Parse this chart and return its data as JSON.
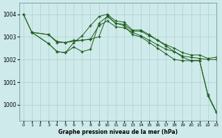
{
  "bg_color": "#ceeaea",
  "grid_color": "#b0cccc",
  "line_color": "#1a5c1a",
  "marker": "+",
  "xlabel": "Graphe pression niveau de la mer (hPa)",
  "xlim": [
    -0.5,
    23
  ],
  "ylim": [
    999.3,
    1004.5
  ],
  "yticks": [
    1000,
    1001,
    1002,
    1003,
    1004
  ],
  "xticks": [
    0,
    1,
    2,
    3,
    4,
    5,
    6,
    7,
    8,
    9,
    10,
    11,
    12,
    13,
    14,
    15,
    16,
    17,
    18,
    19,
    20,
    21,
    22,
    23
  ],
  "series": [
    {
      "x": [
        0,
        1,
        3,
        4,
        5,
        6,
        7,
        8,
        9,
        10,
        11,
        12,
        13,
        14,
        15,
        16,
        17,
        18,
        19,
        20,
        21,
        22,
        23
      ],
      "y": [
        1004.0,
        1003.2,
        1003.1,
        1002.8,
        1002.75,
        1002.85,
        1002.85,
        1002.9,
        1003.0,
        1003.95,
        1003.6,
        1003.55,
        1003.25,
        1003.25,
        1003.05,
        1002.85,
        1002.65,
        1002.5,
        1002.3,
        1002.2,
        1002.2,
        1002.05,
        1002.1
      ]
    },
    {
      "x": [
        1,
        3,
        4,
        5,
        7,
        8,
        9,
        10,
        11,
        12,
        13,
        14,
        15,
        16,
        17,
        18,
        19,
        20,
        21,
        22,
        23
      ],
      "y": [
        1003.2,
        1003.1,
        1002.75,
        1002.75,
        1002.85,
        1002.9,
        1003.5,
        1003.7,
        1003.45,
        1003.4,
        1003.2,
        1003.05,
        1002.85,
        1002.65,
        1002.45,
        1002.35,
        1002.15,
        1002.1,
        1002.05,
        1002.0,
        1002.0
      ]
    },
    {
      "x": [
        1,
        3,
        4,
        5,
        6,
        7,
        8,
        9,
        10,
        11,
        12,
        13,
        14,
        15,
        16,
        17,
        18,
        19,
        20,
        21,
        22,
        23
      ],
      "y": [
        1003.2,
        1002.7,
        1002.35,
        1002.3,
        1002.75,
        1003.05,
        1003.5,
        1003.9,
        1004.0,
        1003.7,
        1003.65,
        1003.3,
        1003.3,
        1003.1,
        1002.85,
        1002.6,
        1002.35,
        1002.1,
        1001.95,
        1001.95,
        1000.45,
        999.7
      ]
    },
    {
      "x": [
        0,
        1,
        3,
        4,
        5,
        6,
        7,
        8,
        9,
        10,
        11,
        12,
        13,
        14,
        15,
        16,
        17,
        18,
        19,
        20,
        21,
        22,
        23
      ],
      "y": [
        1004.0,
        1003.2,
        1002.7,
        1002.35,
        1002.3,
        1002.55,
        1002.35,
        1002.45,
        1003.6,
        1003.9,
        1003.6,
        1003.5,
        1003.1,
        1003.0,
        1002.75,
        1002.5,
        1002.25,
        1002.0,
        1001.95,
        1001.95,
        1001.95,
        1000.4,
        999.65
      ]
    }
  ]
}
